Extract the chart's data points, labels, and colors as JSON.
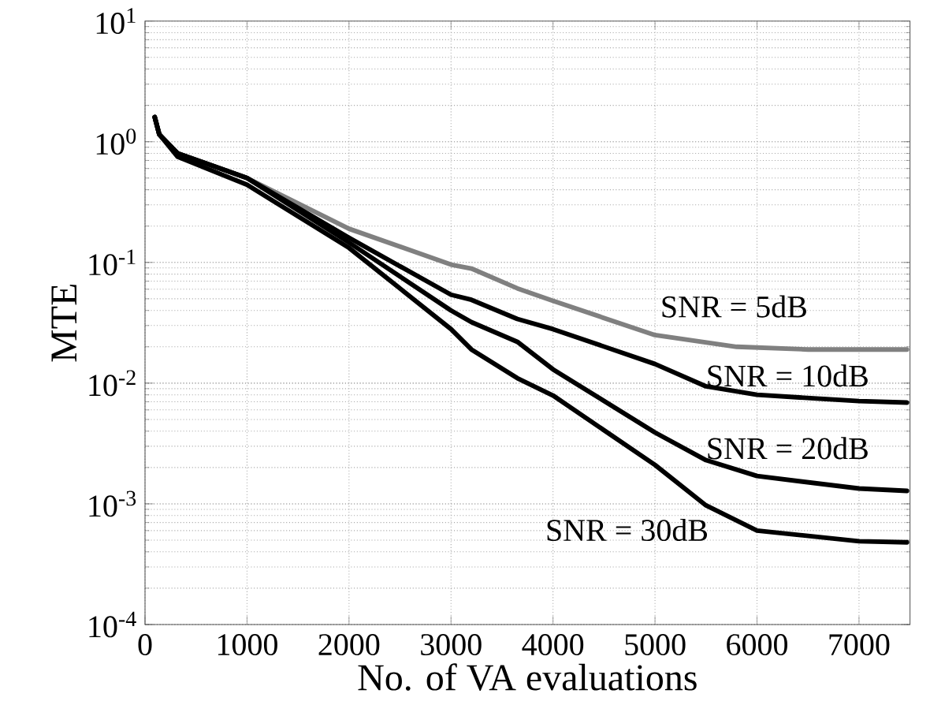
{
  "chart_data": {
    "type": "line",
    "xlabel": "No. of VA evaluations",
    "ylabel": "MTE",
    "log": "y",
    "grid": true,
    "line_style": "solid",
    "xlim": [
      0,
      7500
    ],
    "ylim": [
      0.0001,
      10
    ],
    "xticks": [
      0,
      1000,
      2000,
      3000,
      4000,
      5000,
      6000,
      7000
    ],
    "yticks": [
      {
        "value": 0.0001,
        "label": "10$^{-4}$"
      },
      {
        "value": 0.001,
        "label": "10$^{-3}$"
      },
      {
        "value": 0.01,
        "label": "10$^{-2}$"
      },
      {
        "value": 0.1,
        "label": "10$^{-1}$"
      },
      {
        "value": 1,
        "label": "10$^{0}$"
      },
      {
        "value": 10,
        "label": "10$^{1}$"
      }
    ],
    "series": [
      {
        "name": "SNR = 5dB",
        "color": "#808080",
        "x": [
          95,
          140,
          320,
          1000,
          2000,
          3000,
          3200,
          3650,
          4000,
          5000,
          5800,
          6500,
          7470
        ],
        "values": [
          1.6,
          1.15,
          0.8,
          0.5,
          0.19,
          0.096,
          0.089,
          0.061,
          0.048,
          0.025,
          0.02,
          0.019,
          0.019
        ]
      },
      {
        "name": "SNR = 10dB",
        "color": "#000000",
        "x": [
          95,
          140,
          320,
          1000,
          2000,
          3000,
          3200,
          3650,
          4000,
          5000,
          5500,
          6000,
          7000,
          7470
        ],
        "values": [
          1.6,
          1.15,
          0.8,
          0.5,
          0.16,
          0.054,
          0.049,
          0.034,
          0.028,
          0.0144,
          0.0094,
          0.008,
          0.0071,
          0.0069
        ]
      },
      {
        "name": "SNR = 20dB",
        "color": "#000000",
        "x": [
          95,
          140,
          320,
          1000,
          2000,
          3000,
          3200,
          3650,
          4000,
          5000,
          5500,
          6000,
          7000,
          7470
        ],
        "values": [
          1.6,
          1.15,
          0.8,
          0.5,
          0.146,
          0.04,
          0.032,
          0.022,
          0.013,
          0.0039,
          0.0023,
          0.0017,
          0.00134,
          0.00128
        ]
      },
      {
        "name": "SNR = 30dB",
        "color": "#000000",
        "x": [
          95,
          140,
          320,
          1000,
          2000,
          3000,
          3200,
          3650,
          4000,
          5000,
          5500,
          6000,
          7000,
          7470
        ],
        "values": [
          1.6,
          1.15,
          0.75,
          0.44,
          0.132,
          0.028,
          0.019,
          0.011,
          0.0079,
          0.0021,
          0.00097,
          0.0006,
          0.00049,
          0.00048
        ]
      }
    ]
  }
}
